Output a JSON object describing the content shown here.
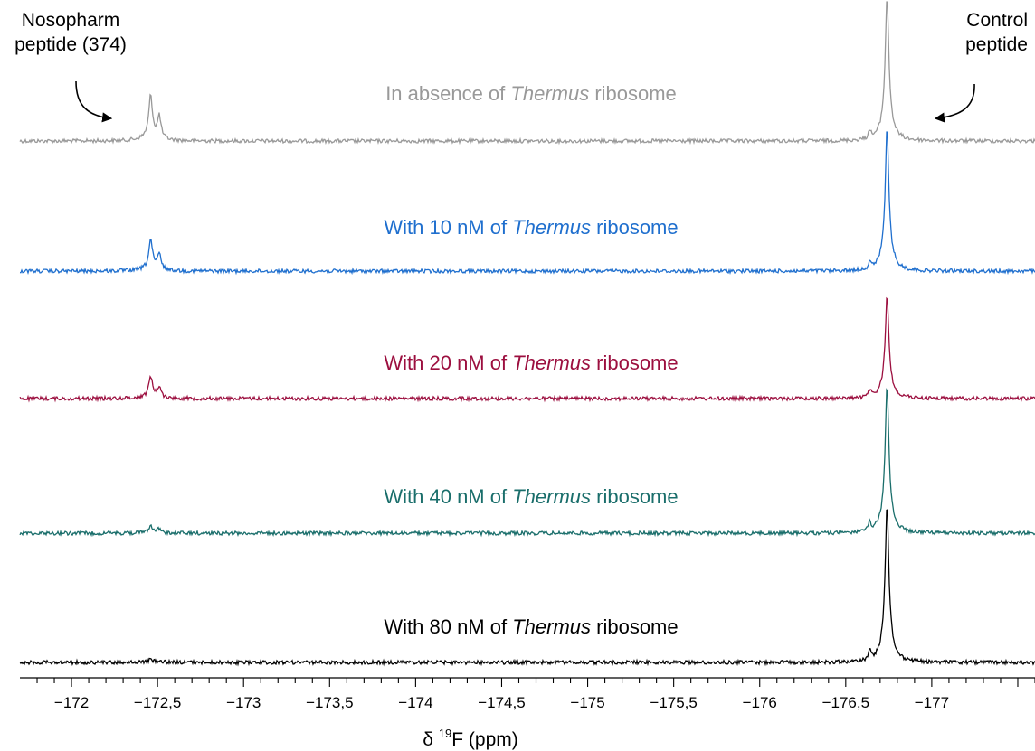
{
  "chart_data": {
    "type": "line",
    "title": "",
    "xlabel_prefix": "δ ",
    "xlabel_sup": "19",
    "xlabel_suffix": "F (ppm)",
    "xlim": [
      -171.7,
      -177.6
    ],
    "x_reversed": true,
    "x_ticks": [
      -172,
      -172.5,
      -173,
      -173.5,
      -174,
      -174.5,
      -175,
      -175.5,
      -176,
      -176.5,
      -177
    ],
    "x_tick_labels": [
      "−172",
      "−172,5",
      "−173",
      "−173,5",
      "−174",
      "−174,5",
      "−175",
      "−175,5",
      "−176",
      "−176,5",
      "−177"
    ],
    "x_minor_step": 0.1,
    "annotations": [
      {
        "lines": [
          "Nosopharm",
          "peptide (374)"
        ],
        "x": -172.43
      },
      {
        "lines": [
          "Control",
          "peptide"
        ],
        "x": -176.75
      }
    ],
    "series": [
      {
        "label_pre": "In absence of ",
        "label_em": "Thermus",
        "label_post": " ribosome",
        "color": "#999999",
        "peak_a": 0.55,
        "peak_b": 1.55,
        "satellite": 0.12
      },
      {
        "label_pre": "With 10 nM of ",
        "label_em": "Thermus",
        "label_post": " ribosome",
        "color": "#1f6fce",
        "peak_a": 0.38,
        "peak_b": 1.52,
        "satellite": 0.1
      },
      {
        "label_pre": "With 20 nM of ",
        "label_em": "Thermus",
        "label_post": " ribosome",
        "color": "#9c0f3f",
        "peak_a": 0.27,
        "peak_b": 1.1,
        "satellite": 0.1
      },
      {
        "label_pre": "With 40 nM of ",
        "label_em": "Thermus",
        "label_post": " ribosome",
        "color": "#1a6e6b",
        "peak_a": 0.1,
        "peak_b": 1.6,
        "satellite": 0.12
      },
      {
        "label_pre": "With 80 nM of ",
        "label_em": "Thermus",
        "label_post": " ribosome",
        "color": "#000000",
        "peak_a": 0.04,
        "peak_b": 1.7,
        "satellite": 0.14
      }
    ],
    "peak_positions": {
      "nosopharm": -172.46,
      "nosopharm_shoulder": -172.51,
      "control": -176.74,
      "satellite": -176.64
    }
  }
}
